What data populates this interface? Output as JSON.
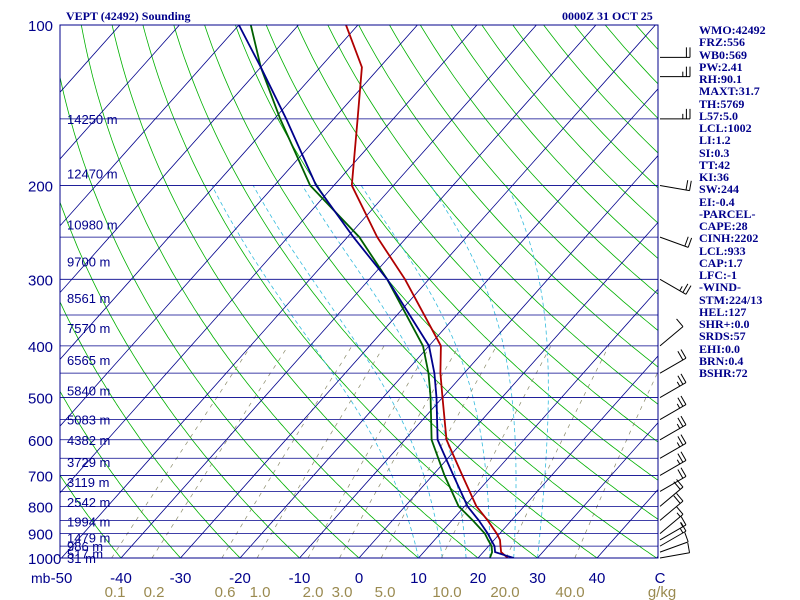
{
  "header": {
    "station_title": "VEPT (42492) Sounding",
    "valid_time": "0000Z 31 OCT 25"
  },
  "indices": [
    "WMO:42492",
    "FRZ:556",
    "WB0:569",
    "PW:2.41",
    "RH:90.1",
    "MAXT:31.7",
    "TH:5769",
    "L57:5.0",
    "LCL:1002",
    "LI:1.2",
    "SI:0.3",
    "TT:42",
    "KI:36",
    "SW:244",
    "EI:-0.4",
    "-PARCEL-",
    "CAPE:28",
    "CINH:2202",
    "LCL:933",
    "CAP:1.7",
    "LFC:-1",
    "-WIND-",
    "STM:224/13",
    "HEL:127",
    "SHR+:0.0",
    "SRDS:57",
    "EHI:0.0",
    "BRN:0.4",
    "BSHR:72"
  ],
  "chart_data": {
    "type": "line",
    "title": "VEPT (42492) Sounding",
    "subtitle": "0000Z 31 OCT 25",
    "xlabel": "",
    "ylabel": "mb",
    "pressure_ticks": [
      100,
      200,
      300,
      400,
      500,
      600,
      700,
      800,
      900,
      1000
    ],
    "temperature_ticks": [
      -50,
      -40,
      -30,
      -20,
      -10,
      0,
      10,
      20,
      30,
      40
    ],
    "mixing_ratio_ticks": [
      "0.1",
      "0.2",
      "0.6",
      "1.0",
      "2.0",
      "3.0",
      "5.0",
      "10.0",
      "20.0",
      "40.0",
      "g/kg"
    ],
    "corner_label": "C",
    "xlim": [
      -50,
      50
    ],
    "ylim": [
      1000,
      100
    ],
    "y_scale": "log",
    "height_labels": [
      {
        "p": 150,
        "text": "14250 m"
      },
      {
        "p": 190,
        "text": "12470 m"
      },
      {
        "p": 237,
        "text": "10980 m"
      },
      {
        "p": 278,
        "text": "9700 m"
      },
      {
        "p": 325,
        "text": "8561 m"
      },
      {
        "p": 370,
        "text": "7570 m"
      },
      {
        "p": 425,
        "text": "6565 m"
      },
      {
        "p": 485,
        "text": "5840 m"
      },
      {
        "p": 550,
        "text": "5083 m"
      },
      {
        "p": 600,
        "text": "4382 m"
      },
      {
        "p": 660,
        "text": "3729 m"
      },
      {
        "p": 720,
        "text": "3119 m"
      },
      {
        "p": 785,
        "text": "2542 m"
      },
      {
        "p": 855,
        "text": "1994 m"
      },
      {
        "p": 915,
        "text": "1479 m"
      },
      {
        "p": 950,
        "text": "986 m"
      },
      {
        "p": 980,
        "text": "517 m"
      },
      {
        "p": 1000,
        "text": "31 m"
      }
    ],
    "series": [
      {
        "name": "",
        "color": "#b00000",
        "points": [
          {
            "p": 1000,
            "t": 25
          },
          {
            "p": 975,
            "t": 23
          },
          {
            "p": 950,
            "t": 22
          },
          {
            "p": 925,
            "t": 21
          },
          {
            "p": 900,
            "t": 19.5
          },
          {
            "p": 850,
            "t": 16
          },
          {
            "p": 800,
            "t": 12
          },
          {
            "p": 700,
            "t": 5
          },
          {
            "p": 600,
            "t": -3
          },
          {
            "p": 500,
            "t": -10
          },
          {
            "p": 450,
            "t": -14
          },
          {
            "p": 400,
            "t": -18
          },
          {
            "p": 300,
            "t": -34
          },
          {
            "p": 250,
            "t": -45
          },
          {
            "p": 200,
            "t": -57
          },
          {
            "p": 150,
            "t": -66
          },
          {
            "p": 120,
            "t": -73
          },
          {
            "p": 100,
            "t": -82
          }
        ]
      },
      {
        "name": "",
        "color": "#006000",
        "points": [
          {
            "p": 1000,
            "t": 22
          },
          {
            "p": 975,
            "t": 21.5
          },
          {
            "p": 950,
            "t": 20.5
          },
          {
            "p": 925,
            "t": 19
          },
          {
            "p": 900,
            "t": 17.5
          },
          {
            "p": 850,
            "t": 13.5
          },
          {
            "p": 800,
            "t": 9
          },
          {
            "p": 700,
            "t": 2
          },
          {
            "p": 600,
            "t": -5.5
          },
          {
            "p": 500,
            "t": -12
          },
          {
            "p": 450,
            "t": -16
          },
          {
            "p": 400,
            "t": -21
          },
          {
            "p": 300,
            "t": -37
          },
          {
            "p": 250,
            "t": -48
          },
          {
            "p": 200,
            "t": -64
          },
          {
            "p": 150,
            "t": -79
          },
          {
            "p": 120,
            "t": -90
          },
          {
            "p": 100,
            "t": -98
          }
        ]
      },
      {
        "name": "",
        "color": "#00008b",
        "points": [
          {
            "p": 1000,
            "t": 26
          },
          {
            "p": 975,
            "t": 22
          },
          {
            "p": 950,
            "t": 21
          },
          {
            "p": 925,
            "t": 19.5
          },
          {
            "p": 900,
            "t": 18
          },
          {
            "p": 850,
            "t": 14.5
          },
          {
            "p": 800,
            "t": 10.5
          },
          {
            "p": 700,
            "t": 3.5
          },
          {
            "p": 600,
            "t": -4.5
          },
          {
            "p": 500,
            "t": -11
          },
          {
            "p": 450,
            "t": -15
          },
          {
            "p": 400,
            "t": -20
          },
          {
            "p": 300,
            "t": -37
          },
          {
            "p": 250,
            "t": -49
          },
          {
            "p": 200,
            "t": -63
          },
          {
            "p": 150,
            "t": -78
          },
          {
            "p": 120,
            "t": -90
          },
          {
            "p": 100,
            "t": -100
          }
        ]
      }
    ],
    "wind_barbs": [
      {
        "p": 1000,
        "dir": 260,
        "spd": 10
      },
      {
        "p": 975,
        "dir": 250,
        "spd": 10
      },
      {
        "p": 950,
        "dir": 240,
        "spd": 15
      },
      {
        "p": 925,
        "dir": 240,
        "spd": 15
      },
      {
        "p": 900,
        "dir": 230,
        "spd": 15
      },
      {
        "p": 850,
        "dir": 230,
        "spd": 20
      },
      {
        "p": 800,
        "dir": 230,
        "spd": 20
      },
      {
        "p": 750,
        "dir": 240,
        "spd": 20
      },
      {
        "p": 700,
        "dir": 240,
        "spd": 25
      },
      {
        "p": 650,
        "dir": 240,
        "spd": 25
      },
      {
        "p": 600,
        "dir": 240,
        "spd": 25
      },
      {
        "p": 550,
        "dir": 240,
        "spd": 25
      },
      {
        "p": 500,
        "dir": 240,
        "spd": 25
      },
      {
        "p": 450,
        "dir": 240,
        "spd": 20
      },
      {
        "p": 400,
        "dir": 230,
        "spd": 10
      },
      {
        "p": 300,
        "dir": 300,
        "spd": 25
      },
      {
        "p": 250,
        "dir": 290,
        "spd": 20
      },
      {
        "p": 200,
        "dir": 280,
        "spd": 20
      },
      {
        "p": 150,
        "dir": 270,
        "spd": 25
      },
      {
        "p": 125,
        "dir": 270,
        "spd": 25
      },
      {
        "p": 115,
        "dir": 270,
        "spd": 20
      }
    ]
  }
}
